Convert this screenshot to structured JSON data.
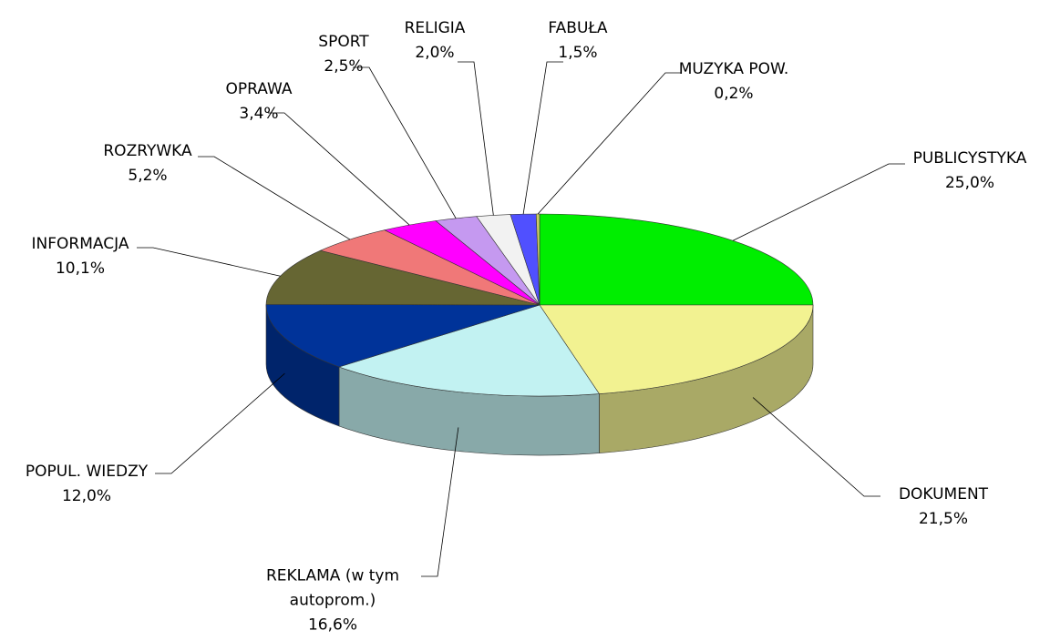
{
  "chart_data": {
    "type": "pie",
    "categories": [
      "PUBLICYSTYKA",
      "DOKUMENT",
      "REKLAMA (w tym autoprom.)",
      "POPUL. WIEDZY",
      "INFORMACJA",
      "ROZRYWKA",
      "OPRAWA",
      "SPORT",
      "RELIGIA",
      "FABUŁA",
      "MUZYKA POW."
    ],
    "values": [
      25.0,
      21.5,
      16.6,
      12.0,
      10.1,
      5.2,
      3.4,
      2.5,
      2.0,
      1.5,
      0.2
    ],
    "value_labels": [
      "25,0%",
      "21,5%",
      "16,6%",
      "12,0%",
      "10,1%",
      "5,2%",
      "3,4%",
      "2,5%",
      "2,0%",
      "1,5%",
      "0,2%"
    ],
    "colors": [
      "#00ee00",
      "#f2f291",
      "#c2f2f2",
      "#003399",
      "#666633",
      "#f07878",
      "#ff00ff",
      "#c599f0",
      "#f2f2f2",
      "#5050ff",
      "#cccc66"
    ]
  }
}
